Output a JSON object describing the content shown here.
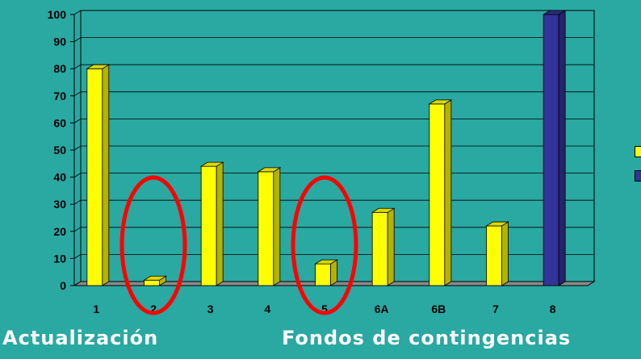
{
  "slide": {
    "title": "",
    "caption_left": "Actualización",
    "caption_right": "Fondos de contingencias"
  },
  "colors": {
    "background": "#2aa8a2",
    "bar_yellow": "#ffff00",
    "bar_blue": "#333399",
    "highlight_circle": "#ff0000"
  },
  "chart_data": {
    "type": "bar",
    "categories": [
      "1",
      "2",
      "3",
      "4",
      "5",
      "6A",
      "6B",
      "7",
      "8"
    ],
    "values": [
      80,
      2,
      44,
      42,
      8,
      27,
      67,
      22,
      100
    ],
    "bar_colors": [
      "#ffff00",
      "#ffff00",
      "#ffff00",
      "#ffff00",
      "#ffff00",
      "#ffff00",
      "#ffff00",
      "#ffff00",
      "#333399"
    ],
    "highlighted_categories": [
      "2",
      "5"
    ],
    "ylim": [
      0,
      100
    ],
    "yticks": [
      0,
      10,
      20,
      30,
      40,
      50,
      60,
      70,
      80,
      90,
      100
    ],
    "grid": true,
    "three_d": true,
    "legend": {
      "placement": "right",
      "entries": []
    },
    "title": "",
    "xlabel": "",
    "ylabel": ""
  }
}
